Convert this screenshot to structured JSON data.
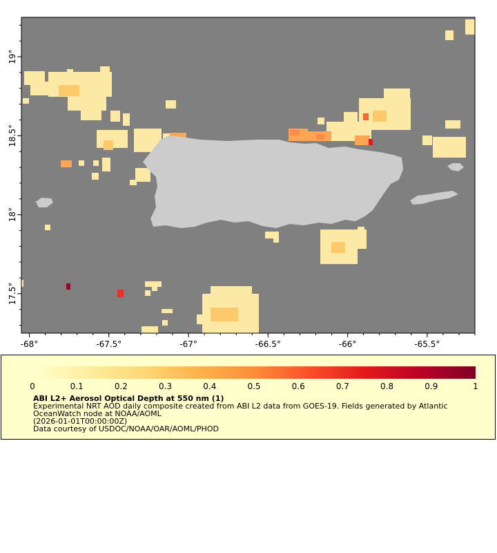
{
  "map": {
    "lon_range": [
      -68.05,
      -65.2
    ],
    "lat_range": [
      17.25,
      19.25
    ],
    "x_ticks": [
      {
        "value": -68,
        "label": "-68°"
      },
      {
        "value": -67.5,
        "label": "-67.5°"
      },
      {
        "value": -67,
        "label": "-67°"
      },
      {
        "value": -66.5,
        "label": "-66.5°"
      },
      {
        "value": -66,
        "label": "-66°"
      },
      {
        "value": -65.5,
        "label": "-65.5°"
      }
    ],
    "y_ticks": [
      {
        "value": 19,
        "label": "19°"
      },
      {
        "value": 18.5,
        "label": "18.5°"
      },
      {
        "value": 18,
        "label": "18°"
      },
      {
        "value": 17.5,
        "label": "17.5°"
      }
    ],
    "background_color": "#808080",
    "land_color": "#cccccc"
  },
  "legend": {
    "colorbar_ticks": [
      "0",
      "0.1",
      "0.2",
      "0.3",
      "0.4",
      "0.5",
      "0.6",
      "0.7",
      "0.8",
      "0.9",
      "1"
    ],
    "colorbar_range": [
      0,
      1
    ],
    "colorbar_colors": [
      "#ffffcc",
      "#ffeda0",
      "#fed976",
      "#feb24c",
      "#fd8d3c",
      "#fc4e2a",
      "#e31a1c",
      "#bd0026",
      "#800026"
    ],
    "title": "ABI L2+ Aerosol Optical Depth at 550 nm (1)",
    "line1": "Experimental NRT AOD daily composite created from ABI L2 data from GOES-19. Fields generated by Atlantic",
    "line2": "OceanWatch node at NOAA/AOML",
    "line3": "(2026-01-01T00:00:00Z)",
    "line4": "Data courtesy of USDOC/NOAA/OAR/AOML/PHOD"
  }
}
